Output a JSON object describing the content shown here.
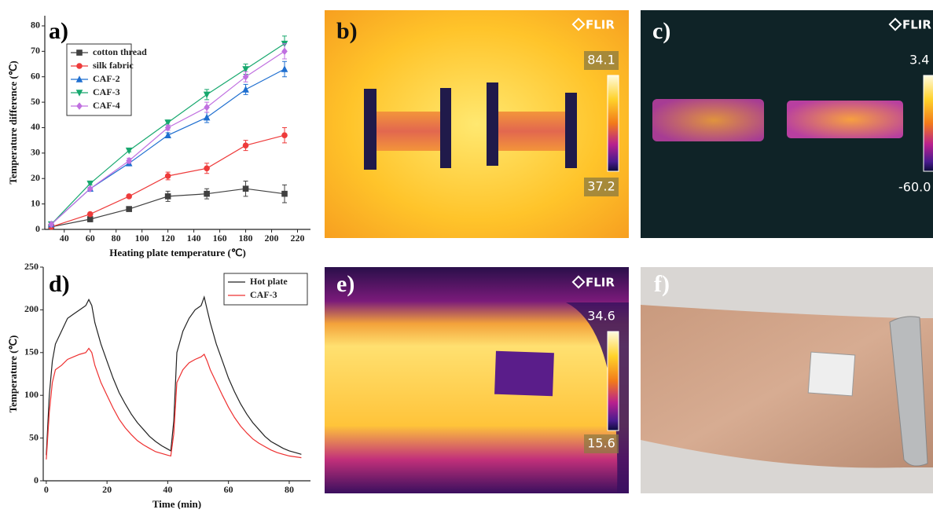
{
  "chart_data": [
    {
      "type": "line",
      "panel_label": "a)",
      "x_label": "Heating plate temperature (℃)",
      "y_label": "Temperature difference (℃)",
      "x": [
        30,
        60,
        90,
        120,
        150,
        180,
        210
      ],
      "series": [
        {
          "name": "cotton thread",
          "color": "#404040",
          "marker": "square",
          "values": [
            1,
            4,
            8,
            13,
            14,
            16,
            14
          ],
          "errors": [
            1,
            1,
            0.5,
            2,
            2,
            3,
            3.5
          ]
        },
        {
          "name": "silk fabric",
          "color": "#ee3b3b",
          "marker": "circle",
          "values": [
            1,
            6,
            13,
            21,
            24,
            33,
            37
          ],
          "errors": [
            0.5,
            0.5,
            0.5,
            1.5,
            2,
            2,
            3
          ]
        },
        {
          "name": "CAF-2",
          "color": "#1f6fd0",
          "marker": "triangle-up",
          "values": [
            2,
            16,
            26,
            37,
            44,
            55,
            63
          ],
          "errors": [
            0.5,
            0.5,
            1,
            1,
            2,
            2,
            3
          ]
        },
        {
          "name": "CAF-3",
          "color": "#17a86e",
          "marker": "triangle-down",
          "values": [
            2,
            18,
            31,
            42,
            53,
            63,
            73
          ],
          "errors": [
            0.5,
            0.5,
            0.5,
            1,
            2,
            2,
            3
          ]
        },
        {
          "name": "CAF-4",
          "color": "#c070e0",
          "marker": "diamond",
          "values": [
            2,
            16,
            27,
            40,
            48,
            60,
            70
          ],
          "errors": [
            0.5,
            0.5,
            1,
            1,
            2,
            2,
            3
          ]
        }
      ],
      "xlim": [
        25,
        230
      ],
      "ylim": [
        0,
        84
      ],
      "xticks": [
        40,
        60,
        80,
        100,
        120,
        140,
        160,
        180,
        200,
        220
      ],
      "yticks": [
        0,
        10,
        20,
        30,
        40,
        50,
        60,
        70,
        80
      ],
      "legend": "upper left"
    },
    {
      "type": "line",
      "panel_label": "d)",
      "x_label": "Time (min)",
      "y_label": "Temperature (℃)",
      "x": [
        0,
        1,
        2,
        3,
        5,
        7,
        9,
        11,
        13,
        14,
        15,
        16,
        18,
        20,
        22,
        24,
        26,
        28,
        30,
        32,
        34,
        36,
        38,
        40,
        41,
        42,
        43,
        45,
        47,
        49,
        51,
        52,
        53,
        54,
        56,
        58,
        60,
        62,
        64,
        66,
        68,
        70,
        72,
        74,
        76,
        78,
        80,
        82,
        84
      ],
      "series": [
        {
          "name": "Hot plate",
          "color": "#222222",
          "values": [
            30,
            100,
            140,
            160,
            175,
            190,
            195,
            200,
            205,
            212,
            205,
            185,
            160,
            140,
            120,
            103,
            90,
            78,
            68,
            60,
            52,
            46,
            41,
            37,
            35,
            70,
            150,
            175,
            190,
            200,
            205,
            215,
            200,
            185,
            160,
            140,
            120,
            104,
            90,
            78,
            68,
            60,
            52,
            46,
            42,
            38,
            35,
            33,
            31
          ]
        },
        {
          "name": "CAF-3",
          "color": "#ee3030",
          "values": [
            25,
            80,
            115,
            130,
            135,
            142,
            145,
            148,
            150,
            155,
            150,
            135,
            115,
            100,
            85,
            72,
            62,
            54,
            47,
            42,
            38,
            34,
            32,
            30,
            29,
            55,
            115,
            130,
            138,
            142,
            145,
            148,
            140,
            130,
            115,
            100,
            86,
            74,
            64,
            56,
            49,
            44,
            40,
            36,
            33,
            31,
            29,
            28,
            27
          ]
        }
      ],
      "xlim": [
        -1,
        87
      ],
      "ylim": [
        0,
        250
      ],
      "xticks": [
        0,
        20,
        40,
        60,
        80
      ],
      "yticks": [
        0,
        50,
        100,
        150,
        200,
        250
      ],
      "legend": "upper right"
    }
  ],
  "photos": {
    "b": {
      "label": "b)",
      "logo": "FLIR",
      "scale_max": "84.1",
      "scale_min": "37.2"
    },
    "c": {
      "label": "c)",
      "logo": "FLIR",
      "scale_max": "3.4",
      "scale_min": "-60.0"
    },
    "e": {
      "label": "e)",
      "logo": "FLIR",
      "scale_max": "34.6",
      "scale_min": "15.6"
    },
    "f": {
      "label": "f)"
    }
  }
}
